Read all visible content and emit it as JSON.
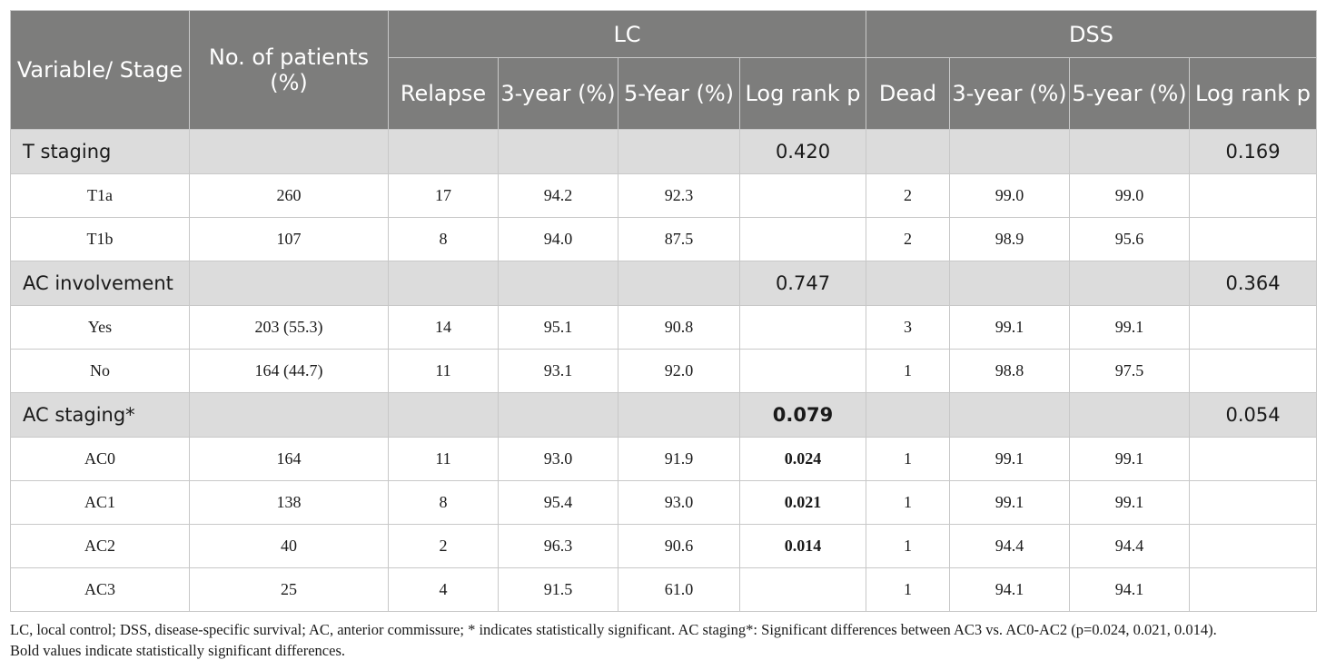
{
  "header": {
    "variable": "Variable/ Stage",
    "patients": "No. of patients (%)",
    "lc": "LC",
    "dss": "DSS",
    "relapse": "Relapse",
    "lc_3yr": "3-year (%)",
    "lc_5yr": "5-Year (%)",
    "lc_logrank": "Log rank p",
    "dead": "Dead",
    "dss_3yr": "3-year (%)",
    "dss_5yr": "5-year (%)",
    "dss_logrank": "Log rank p"
  },
  "groups": [
    {
      "label": "T staging",
      "lc_p": "0.420",
      "lc_p_bold": false,
      "dss_p": "0.169",
      "rows": [
        {
          "stage": "T1a",
          "patients": "260",
          "relapse": "17",
          "lc3": "94.2",
          "lc5": "92.3",
          "lcp": "",
          "lcp_bold": false,
          "dead": "2",
          "dss3": "99.0",
          "dss5": "99.0",
          "dssp": ""
        },
        {
          "stage": "T1b",
          "patients": "107",
          "relapse": "8",
          "lc3": "94.0",
          "lc5": "87.5",
          "lcp": "",
          "lcp_bold": false,
          "dead": "2",
          "dss3": "98.9",
          "dss5": "95.6",
          "dssp": ""
        }
      ]
    },
    {
      "label": "AC involvement",
      "lc_p": "0.747",
      "lc_p_bold": false,
      "dss_p": "0.364",
      "rows": [
        {
          "stage": "Yes",
          "patients": "203 (55.3)",
          "relapse": "14",
          "lc3": "95.1",
          "lc5": "90.8",
          "lcp": "",
          "lcp_bold": false,
          "dead": "3",
          "dss3": "99.1",
          "dss5": "99.1",
          "dssp": ""
        },
        {
          "stage": "No",
          "patients": "164 (44.7)",
          "relapse": "11",
          "lc3": "93.1",
          "lc5": "92.0",
          "lcp": "",
          "lcp_bold": false,
          "dead": "1",
          "dss3": "98.8",
          "dss5": "97.5",
          "dssp": ""
        }
      ]
    },
    {
      "label": "AC staging*",
      "lc_p": "0.079",
      "lc_p_bold": true,
      "dss_p": "0.054",
      "rows": [
        {
          "stage": "AC0",
          "patients": "164",
          "relapse": "11",
          "lc3": "93.0",
          "lc5": "91.9",
          "lcp": "0.024",
          "lcp_bold": true,
          "dead": "1",
          "dss3": "99.1",
          "dss5": "99.1",
          "dssp": ""
        },
        {
          "stage": "AC1",
          "patients": "138",
          "relapse": "8",
          "lc3": "95.4",
          "lc5": "93.0",
          "lcp": "0.021",
          "lcp_bold": true,
          "dead": "1",
          "dss3": "99.1",
          "dss5": "99.1",
          "dssp": ""
        },
        {
          "stage": "AC2",
          "patients": "40",
          "relapse": "2",
          "lc3": "96.3",
          "lc5": "90.6",
          "lcp": "0.014",
          "lcp_bold": true,
          "dead": "1",
          "dss3": "94.4",
          "dss5": "94.4",
          "dssp": ""
        },
        {
          "stage": "AC3",
          "patients": "25",
          "relapse": "4",
          "lc3": "91.5",
          "lc5": "61.0",
          "lcp": "",
          "lcp_bold": false,
          "dead": "1",
          "dss3": "94.1",
          "dss5": "94.1",
          "dssp": ""
        }
      ]
    }
  ],
  "footnote": {
    "line1": "LC, local control; DSS, disease-specific survival; AC, anterior commissure; * indicates statistically significant. AC staging*: Significant differences between AC3 vs. AC0-AC2 (p=0.024, 0.021, 0.014).",
    "line2": "Bold values indicate statistically significant differences."
  },
  "colors": {
    "header_bg": "#7d7d7c",
    "group_bg": "#dcdcdc",
    "border": "#c8c8c8"
  }
}
